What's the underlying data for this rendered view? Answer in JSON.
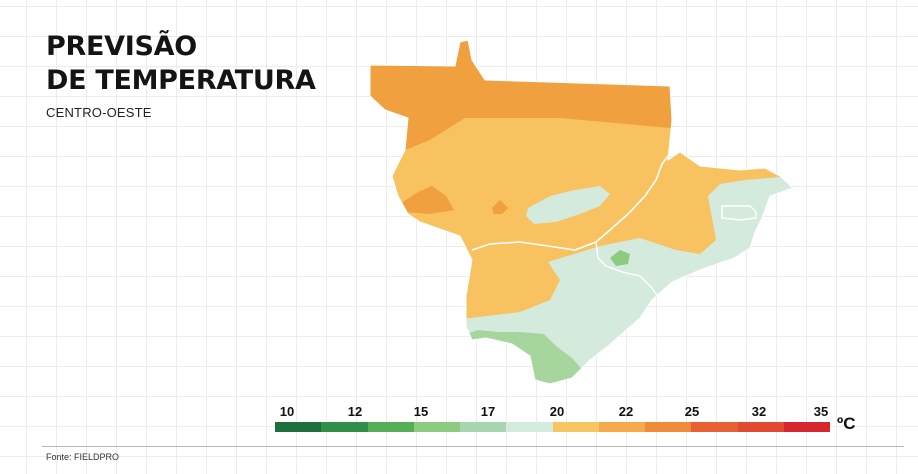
{
  "header": {
    "title_line1": "PREVISÃO",
    "title_line2": "DE TEMPERATURA",
    "subtitle": "CENTRO-OESTE"
  },
  "map": {
    "region": "CENTRO-OESTE",
    "zones": [
      {
        "name": "north-band",
        "color": "#f0a03f",
        "range": "25"
      },
      {
        "name": "central",
        "color": "#f7c25f",
        "range": "22"
      },
      {
        "name": "south-east",
        "color": "#d4eadc",
        "range": "20"
      },
      {
        "name": "south-tip",
        "color": "#a6d69e",
        "range": "17"
      }
    ]
  },
  "legend": {
    "ticks": [
      "10",
      "12",
      "15",
      "17",
      "20",
      "22",
      "25",
      "32",
      "35"
    ],
    "unit": "ºC",
    "colors": [
      "#1f6e3e",
      "#2f8f48",
      "#55ad55",
      "#8ccb80",
      "#a8d6b0",
      "#d3ecdd",
      "#f7c662",
      "#f4a94a",
      "#f0893a",
      "#e76232",
      "#df4a30",
      "#d7262e"
    ]
  },
  "footer": {
    "source": "Fonte: FIELDPRO"
  }
}
